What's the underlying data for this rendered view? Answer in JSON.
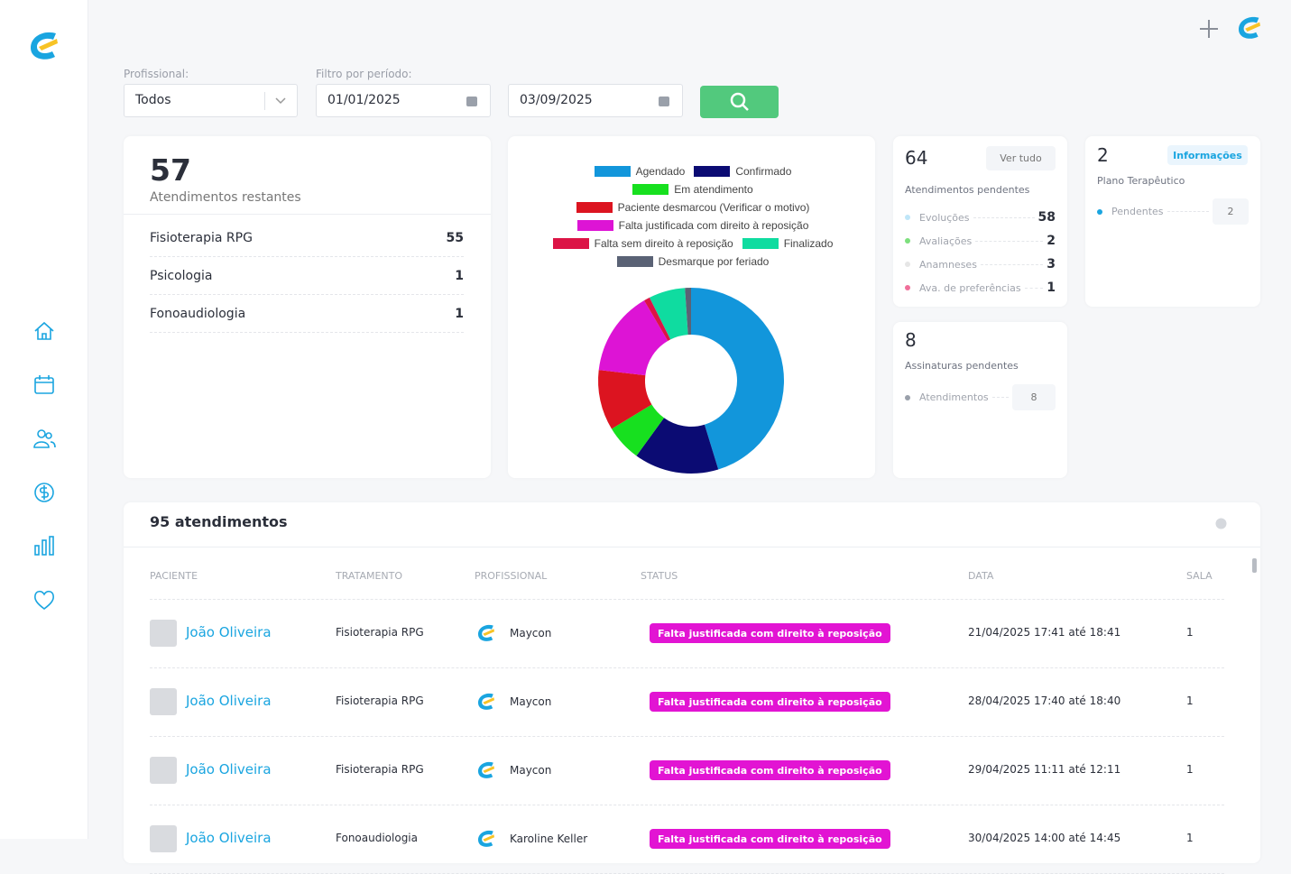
{
  "filters": {
    "professional_label": "Profissional:",
    "professional_value": "Todos",
    "period_label": "Filtro por período:",
    "start_date": "01/01/2025",
    "end_date": "03/09/2025"
  },
  "remaining": {
    "count": 57,
    "label": "Atendimentos restantes",
    "items": [
      {
        "name": "Fisioterapia RPG",
        "count": 55
      },
      {
        "name": "Psicologia",
        "count": 1
      },
      {
        "name": "Fonoaudiologia",
        "count": 1
      }
    ]
  },
  "chart_data": {
    "type": "pie",
    "donut": true,
    "categories": [
      "Agendado",
      "Confirmado",
      "Em atendimento",
      "Paciente desmarcou (Verificar o motivo)",
      "Falta justificada com direito à reposição",
      "Falta sem direito à reposição",
      "Finalizado",
      "Desmarque por feriado"
    ],
    "values": [
      43,
      14,
      6,
      10,
      14,
      1,
      6,
      1
    ],
    "colors": [
      "#1296db",
      "#0b0b73",
      "#17e01f",
      "#dc1420",
      "#dd14d5",
      "#dc1446",
      "#0fdca0",
      "#5a6275"
    ]
  },
  "pending": {
    "count": 64,
    "button": "Ver tudo",
    "label": "Atendimentos pendentes",
    "items": [
      {
        "name": "Evoluções",
        "count": 58
      },
      {
        "name": "Avaliações",
        "count": 2
      },
      {
        "name": "Anamneses",
        "count": 3
      },
      {
        "name": "Ava. de preferências",
        "count": 1
      }
    ]
  },
  "therapy_plan": {
    "count": 2,
    "button": "Informações",
    "label": "Plano Terapêutico",
    "items": [
      {
        "name": "Pendentes",
        "count": 2
      }
    ]
  },
  "signatures": {
    "count": 8,
    "label": "Assinaturas pendentes",
    "items": [
      {
        "name": "Atendimentos",
        "count": 8
      }
    ]
  },
  "table": {
    "title": "95 atendimentos",
    "columns": [
      "PACIENTE",
      "TRATAMENTO",
      "PROFISSIONAL",
      "STATUS",
      "DATA",
      "SALA"
    ],
    "rows": [
      [
        "João Oliveira",
        "Fisioterapia RPG",
        "Maycon",
        "Falta justificada com direito à reposição",
        "21/04/2025 17:41 até 18:41",
        "1"
      ],
      [
        "João Oliveira",
        "Fisioterapia RPG",
        "Maycon",
        "Falta justificada com direito à reposição",
        "28/04/2025 17:40 até 18:40",
        "1"
      ],
      [
        "João Oliveira",
        "Fisioterapia RPG",
        "Maycon",
        "Falta justificada com direito à reposição",
        "29/04/2025 11:11 até 12:11",
        "1"
      ],
      [
        "João Oliveira",
        "Fonoaudiologia",
        "Karoline Keller",
        "Falta justificada com direito à reposição",
        "30/04/2025 14:00 até 14:45",
        "1"
      ]
    ]
  }
}
